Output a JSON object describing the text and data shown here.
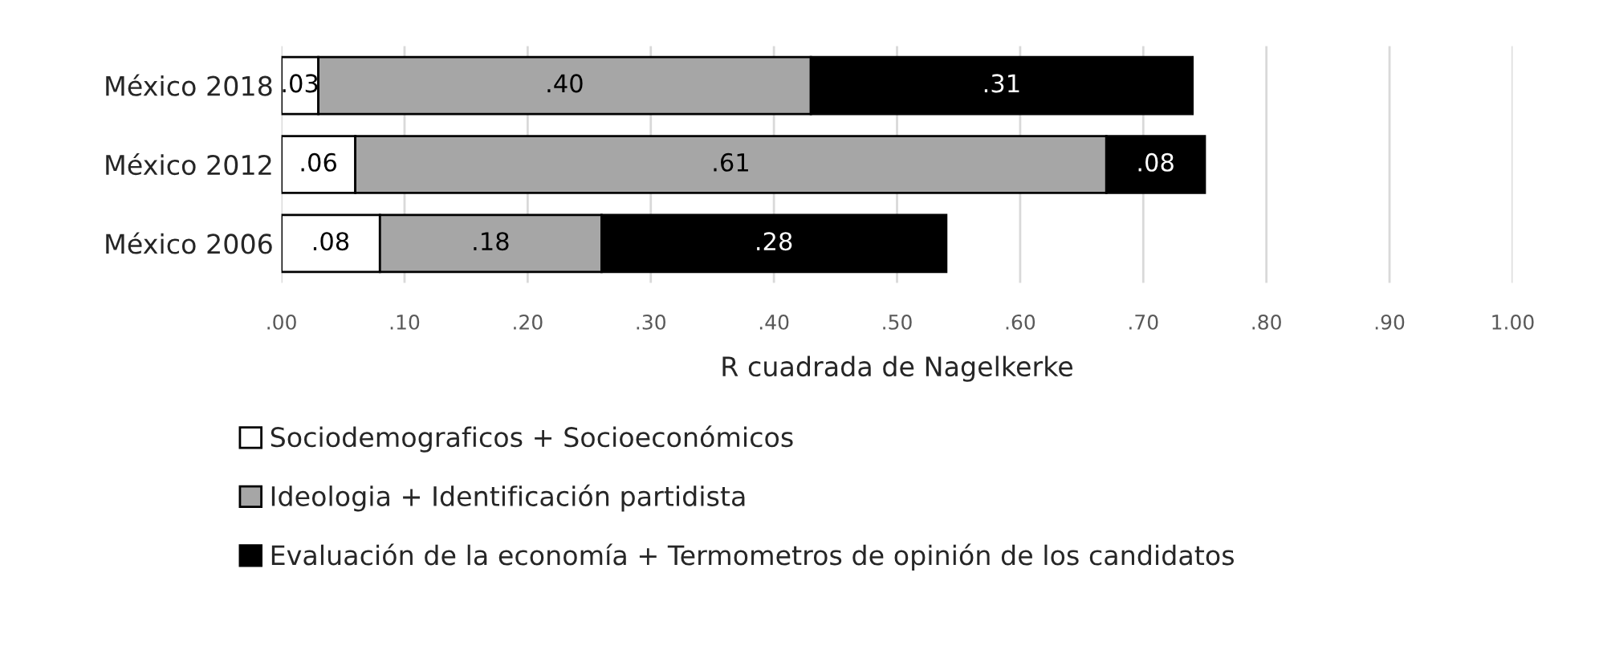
{
  "chart_data": {
    "type": "bar",
    "orientation": "horizontal",
    "stacked": true,
    "categories": [
      "México 2018",
      "México 2012",
      "México 2006"
    ],
    "series": [
      {
        "name": "Sociodemograficos + Socioeconómicos",
        "color": "#ffffff",
        "values": [
          0.03,
          0.06,
          0.08
        ],
        "value_labels": [
          ".03",
          ".06",
          ".08"
        ]
      },
      {
        "name": "Ideologia + Identificación partidista",
        "color": "#a6a6a6",
        "values": [
          0.4,
          0.61,
          0.18
        ],
        "value_labels": [
          ".40",
          ".61",
          ".18"
        ]
      },
      {
        "name": "Evaluación de la economía + Termometros de opinión de los candidatos",
        "color": "#000000",
        "values": [
          0.31,
          0.08,
          0.28
        ],
        "value_labels": [
          ".31",
          ".08",
          ".28"
        ]
      }
    ],
    "xlabel": "R cuadrada de Nagelkerke",
    "xlim": [
      0,
      1
    ],
    "xticks": [
      {
        "value": 0,
        "label": ".00"
      },
      {
        "value": 0.1,
        "label": ".10"
      },
      {
        "value": 0.2,
        "label": ".20"
      },
      {
        "value": 0.3,
        "label": ".30"
      },
      {
        "value": 0.4,
        "label": ".40"
      },
      {
        "value": 0.5,
        "label": ".50"
      },
      {
        "value": 0.6,
        "label": ".60"
      },
      {
        "value": 0.7,
        "label": ".70"
      },
      {
        "value": 0.8,
        "label": ".80"
      },
      {
        "value": 0.9,
        "label": ".90"
      },
      {
        "value": 1,
        "label": "1.00"
      }
    ],
    "grid": "x",
    "legend": "bottom"
  }
}
